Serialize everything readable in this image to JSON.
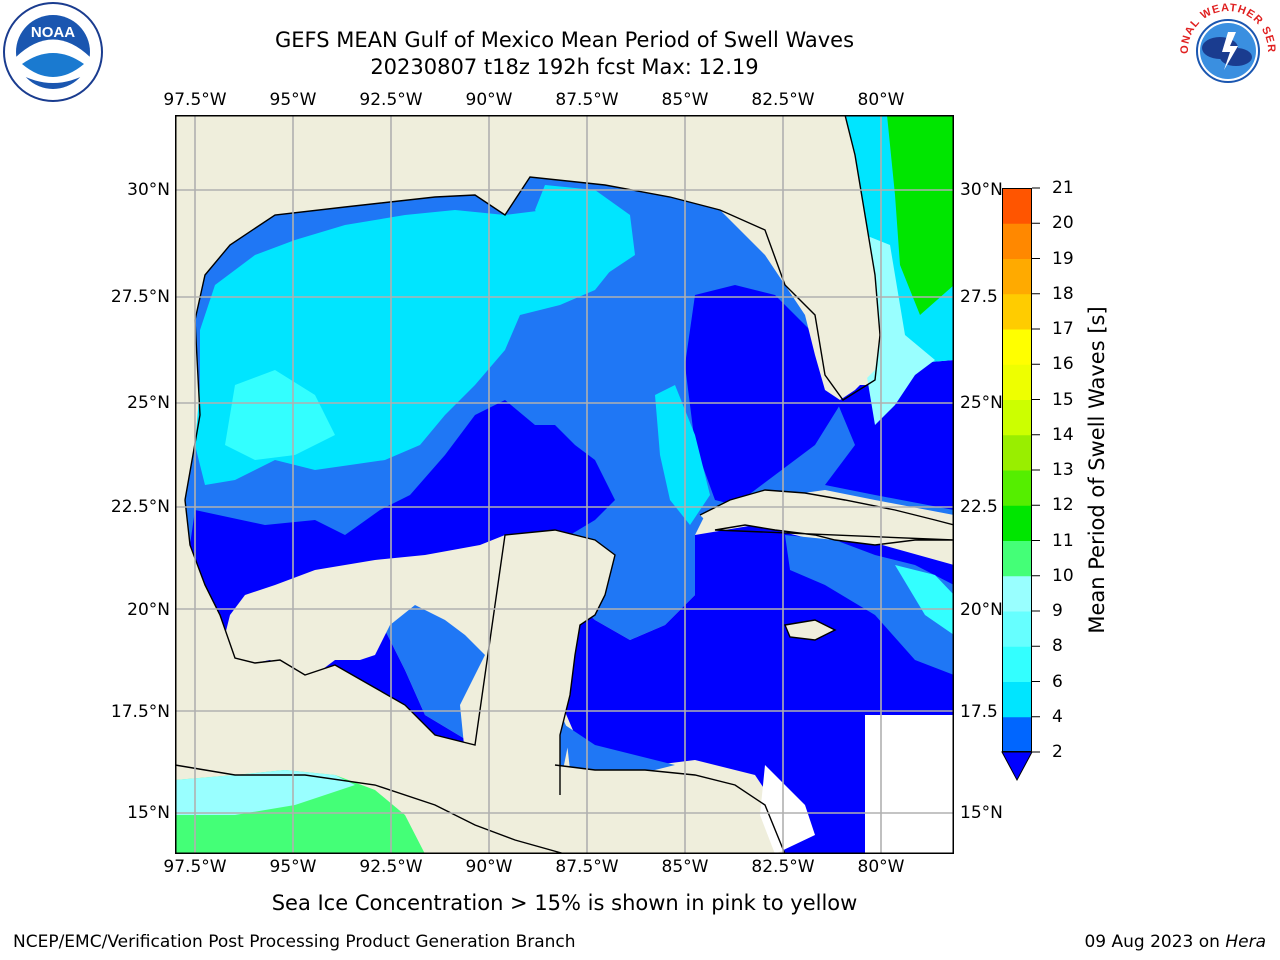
{
  "title_line1": "GEFS MEAN Gulf of Mexico Mean Period of Swell Waves",
  "title_line2": "20230807 t18z 192h fcst   Max: 12.19",
  "note": "Sea Ice Concentration > 15% is shown in pink to yellow",
  "footer_left": "NCEP/EMC/Verification Post Processing Product Generation Branch",
  "footer_date": "09 Aug 2023 on ",
  "footer_host": "Hera",
  "lon_labels": [
    "97.5°W",
    "95°W",
    "92.5°W",
    "90°W",
    "87.5°W",
    "85°W",
    "82.5°W",
    "80°W"
  ],
  "lat_labels_left": [
    "30°N",
    "27.5°N",
    "25°N",
    "22.5°N",
    "20°N",
    "17.5°N",
    "15°N"
  ],
  "lat_labels_right": [
    "30°N",
    "27.5",
    "25°N",
    "22.5",
    "20°N",
    "17.5",
    "15°N"
  ],
  "colorbar": {
    "label": "Mean Period of Swell Waves [s]",
    "ticks": [
      "2",
      "4",
      "6",
      "8",
      "9",
      "10",
      "11",
      "12",
      "13",
      "14",
      "15",
      "16",
      "17",
      "18",
      "19",
      "20",
      "21"
    ],
    "colors": [
      "#0066ff",
      "#00e5ff",
      "#33ffff",
      "#66ffff",
      "#99ffff",
      "#44ff77",
      "#00e600",
      "#55ee00",
      "#99ee00",
      "#ccff00",
      "#eeff00",
      "#ffff00",
      "#ffcc00",
      "#ffaa00",
      "#ff8800",
      "#ff5500",
      "#ff2200",
      "#ff0000"
    ],
    "extend_color": "#0000ff"
  },
  "map_colors": {
    "land": "#efeedc",
    "period_2_4": "#1f77f5",
    "period_lt_2": "#0000ff",
    "period_4_6": "#00e5ff",
    "period_6_8": "#33ffff",
    "period_8_9": "#99ffff",
    "period_9_10": "#44ff77",
    "period_10_11": "#00e600",
    "grid": "#b0b0b0"
  },
  "logos": {
    "noaa_text": "NOAA",
    "nws_text": "NATIONAL WEATHER SERVICE"
  }
}
